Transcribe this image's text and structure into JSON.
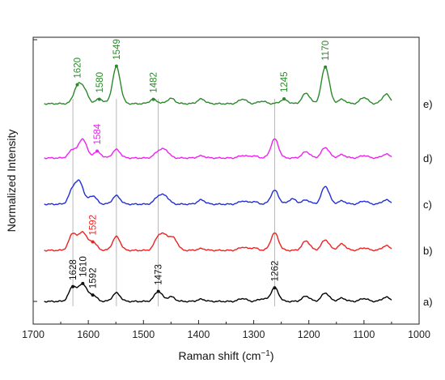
{
  "chart_data": {
    "type": "line",
    "title": "",
    "xlabel": "Raman shift (cm",
    "xlabel_sup": "−1",
    "xlabel_close": ")",
    "ylabel": "Normalized Intensity",
    "xlim": [
      1700,
      1000
    ],
    "x_reversed": true,
    "x_ticks": [
      "1700",
      "1600",
      "1500",
      "1400",
      "1300",
      "1200",
      "1100",
      "1000"
    ],
    "y_ticks_labeled": false,
    "grid": false,
    "reference_lines_at": [
      1628,
      1549,
      1473,
      1262
    ],
    "series": [
      {
        "label": "a)",
        "color": "#000000",
        "baseline": 0,
        "peaks": [
          [
            1628,
            0.7
          ],
          [
            1610,
            0.82
          ],
          [
            1592,
            0.3
          ],
          [
            1549,
            0.4
          ],
          [
            1473,
            0.48
          ],
          [
            1450,
            0.22
          ],
          [
            1395,
            0.1
          ],
          [
            1320,
            0.14
          ],
          [
            1285,
            0.12
          ],
          [
            1262,
            0.64
          ],
          [
            1205,
            0.25
          ],
          [
            1170,
            0.4
          ],
          [
            1140,
            0.15
          ],
          [
            1100,
            0.14
          ],
          [
            1060,
            0.2
          ]
        ],
        "peak_labels": [
          {
            "x": 1628,
            "text": "1628"
          },
          {
            "x": 1610,
            "text": "1610"
          },
          {
            "x": 1592,
            "text": "1592"
          },
          {
            "x": 1473,
            "text": "1473"
          },
          {
            "x": 1262,
            "text": "1262"
          }
        ]
      },
      {
        "label": "b)",
        "color": "#ee2222",
        "baseline": 1,
        "peaks": [
          [
            1628,
            0.8
          ],
          [
            1610,
            0.85
          ],
          [
            1592,
            0.4
          ],
          [
            1549,
            0.65
          ],
          [
            1473,
            0.62
          ],
          [
            1460,
            0.6
          ],
          [
            1445,
            0.55
          ],
          [
            1395,
            0.08
          ],
          [
            1320,
            0.15
          ],
          [
            1300,
            0.12
          ],
          [
            1262,
            0.82
          ],
          [
            1205,
            0.45
          ],
          [
            1170,
            0.5
          ],
          [
            1140,
            0.3
          ],
          [
            1100,
            0.12
          ],
          [
            1060,
            0.22
          ]
        ],
        "peak_labels": [
          {
            "x": 1592,
            "text": "1592",
            "color": "#ee2222"
          }
        ]
      },
      {
        "label": "c)",
        "color": "#1f2ed8",
        "baseline": 2,
        "peaks": [
          [
            1628,
            0.7
          ],
          [
            1615,
            0.95
          ],
          [
            1592,
            0.4
          ],
          [
            1549,
            0.4
          ],
          [
            1473,
            0.35
          ],
          [
            1460,
            0.35
          ],
          [
            1395,
            0.2
          ],
          [
            1320,
            0.15
          ],
          [
            1300,
            0.12
          ],
          [
            1262,
            0.65
          ],
          [
            1230,
            0.25
          ],
          [
            1205,
            0.2
          ],
          [
            1170,
            0.85
          ],
          [
            1140,
            0.15
          ],
          [
            1100,
            0.15
          ],
          [
            1060,
            0.2
          ]
        ],
        "peak_labels": []
      },
      {
        "label": "d)",
        "color": "#ee22ee",
        "baseline": 3,
        "peaks": [
          [
            1628,
            0.4
          ],
          [
            1610,
            0.9
          ],
          [
            1584,
            0.3
          ],
          [
            1549,
            0.4
          ],
          [
            1473,
            0.3
          ],
          [
            1460,
            0.35
          ],
          [
            1395,
            0.1
          ],
          [
            1320,
            0.12
          ],
          [
            1300,
            0.1
          ],
          [
            1262,
            0.9
          ],
          [
            1205,
            0.3
          ],
          [
            1170,
            0.5
          ],
          [
            1140,
            0.15
          ],
          [
            1100,
            0.12
          ],
          [
            1060,
            0.18
          ]
        ],
        "peak_labels": [
          {
            "x": 1584,
            "text": "1584",
            "color": "#ee22ee"
          }
        ]
      },
      {
        "label": "e)",
        "color": "#2a8a2a",
        "baseline": 4,
        "peaks": [
          [
            1620,
            0.75
          ],
          [
            1608,
            0.65
          ],
          [
            1580,
            0.22
          ],
          [
            1549,
            1.75
          ],
          [
            1482,
            0.2
          ],
          [
            1450,
            0.25
          ],
          [
            1395,
            0.22
          ],
          [
            1320,
            0.22
          ],
          [
            1285,
            0.12
          ],
          [
            1245,
            0.2
          ],
          [
            1205,
            0.5
          ],
          [
            1170,
            1.75
          ],
          [
            1140,
            0.2
          ],
          [
            1100,
            0.3
          ],
          [
            1060,
            0.45
          ]
        ],
        "peak_labels": [
          {
            "x": 1620,
            "text": "1620",
            "color": "#2a8a2a"
          },
          {
            "x": 1580,
            "text": "1580",
            "color": "#2a8a2a"
          },
          {
            "x": 1549,
            "text": "1549",
            "color": "#2a8a2a"
          },
          {
            "x": 1482,
            "text": "1482",
            "color": "#2a8a2a"
          },
          {
            "x": 1245,
            "text": "1245",
            "color": "#2a8a2a"
          },
          {
            "x": 1170,
            "text": "1170",
            "color": "#2a8a2a"
          }
        ]
      }
    ]
  }
}
